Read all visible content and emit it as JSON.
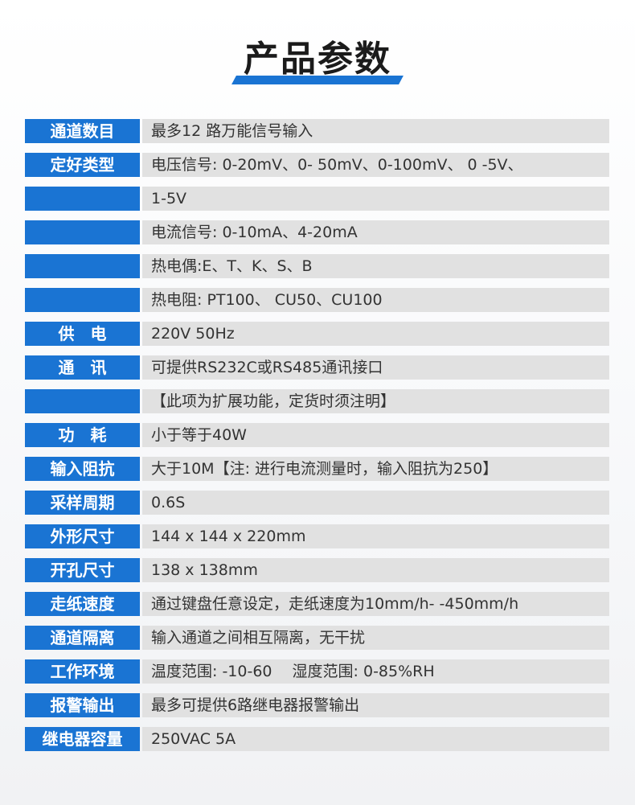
{
  "title": "产品参数",
  "rows": [
    {
      "label": "通道数目",
      "value": "最多12 路万能信号输入"
    },
    {
      "label": "定好类型",
      "value": "电压信号: 0-20mV、0- 50mV、0-100mV、 0 -5V、"
    },
    {
      "label": "",
      "value": "1-5V"
    },
    {
      "label": "",
      "value": "电流信号: 0-10mA、4-20mA"
    },
    {
      "label": "",
      "value": "热电偶:E、T、K、S、B"
    },
    {
      "label": "",
      "value": "热电阻: PT100、 CU50、CU100"
    },
    {
      "label": "供　电",
      "value": "220V 50Hz"
    },
    {
      "label": "通　讯",
      "value": "可提供RS232C或RS485通讯接口"
    },
    {
      "label": "",
      "value": "【此项为扩展功能，定货时须注明】"
    },
    {
      "label": "功　耗",
      "value": "小于等于40W"
    },
    {
      "label": "输入阻抗",
      "value": "大于10M【注: 进行电流测量时，输入阻抗为250】"
    },
    {
      "label": "采样周期",
      "value": "0.6S"
    },
    {
      "label": "外形尺寸",
      "value": "144 x 144 x 220mm"
    },
    {
      "label": "开孔尺寸",
      "value": "138 x 138mm"
    },
    {
      "label": "走纸速度",
      "value": "通过键盘任意设定，走纸速度为10mm/h- -450mm/h"
    },
    {
      "label": "通道隔离",
      "value": "输入通道之间相互隔离，无干扰"
    },
    {
      "label": "工作环境",
      "value": "温度范围: -10-60　 湿度范围: 0-85%RH"
    },
    {
      "label": "报警输出",
      "value": "最多可提供6路继电器报警输出"
    },
    {
      "label": "继电器容量",
      "value": "250VAC 5A"
    }
  ]
}
